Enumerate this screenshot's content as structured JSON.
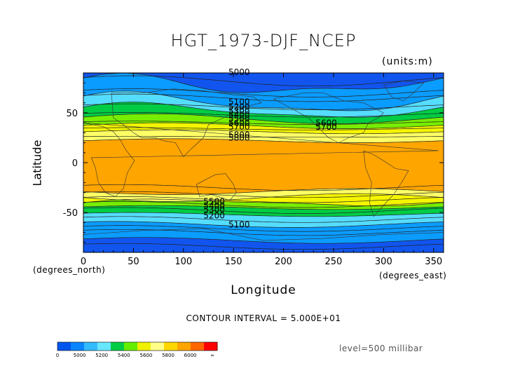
{
  "chart_data": {
    "type": "heatmap",
    "title": "HGT_1973-DJF_NCEP",
    "units": "(units:m)",
    "xlabel": "Longitude",
    "ylabel": "Latitude",
    "x_unit_label": "(degrees_east)",
    "y_unit_label": "(degrees_north)",
    "xlim": [
      0,
      360
    ],
    "ylim": [
      -90,
      90
    ],
    "x_ticks": [
      0,
      50,
      100,
      150,
      200,
      250,
      300,
      350
    ],
    "y_ticks": [
      50,
      0,
      -50
    ],
    "contour_interval": "CONTOUR INTERVAL = 5.000E+01",
    "level": "level=500 millibar",
    "contour_labels": [
      "5000",
      "5100",
      "5200",
      "5300",
      "5400",
      "5500",
      "5600",
      "5700",
      "5800",
      "5600",
      "5700",
      "5800",
      "5100",
      "5200",
      "5300",
      "5400",
      "5500"
    ],
    "colorbar": {
      "labels": [
        "0",
        "5000",
        "5200",
        "5400",
        "5600",
        "5800",
        "6000",
        "∞"
      ],
      "colors": [
        "#0055ee",
        "#0a85ff",
        "#33bbff",
        "#66e6ff",
        "#00cc44",
        "#66ee00",
        "#f0f000",
        "#ffff88",
        "#ffd700",
        "#ffa500",
        "#ff6600",
        "#ff0000"
      ]
    },
    "bands": [
      {
        "from_height": "<5000",
        "color": "#1155ee"
      },
      {
        "from_height": "5000-5300",
        "color": "#0a9cff"
      },
      {
        "from_height": "5300-5400",
        "color": "#55ddff"
      },
      {
        "from_height": "5400-5500",
        "color": "#00cc44"
      },
      {
        "from_height": "5500-5600",
        "color": "#77ee00"
      },
      {
        "from_height": "5600-5700",
        "color": "#f5f500"
      },
      {
        "from_height": "5700-5800",
        "color": "#ffff66"
      },
      {
        "from_height": ">5800",
        "color": "#ffa500"
      }
    ]
  }
}
